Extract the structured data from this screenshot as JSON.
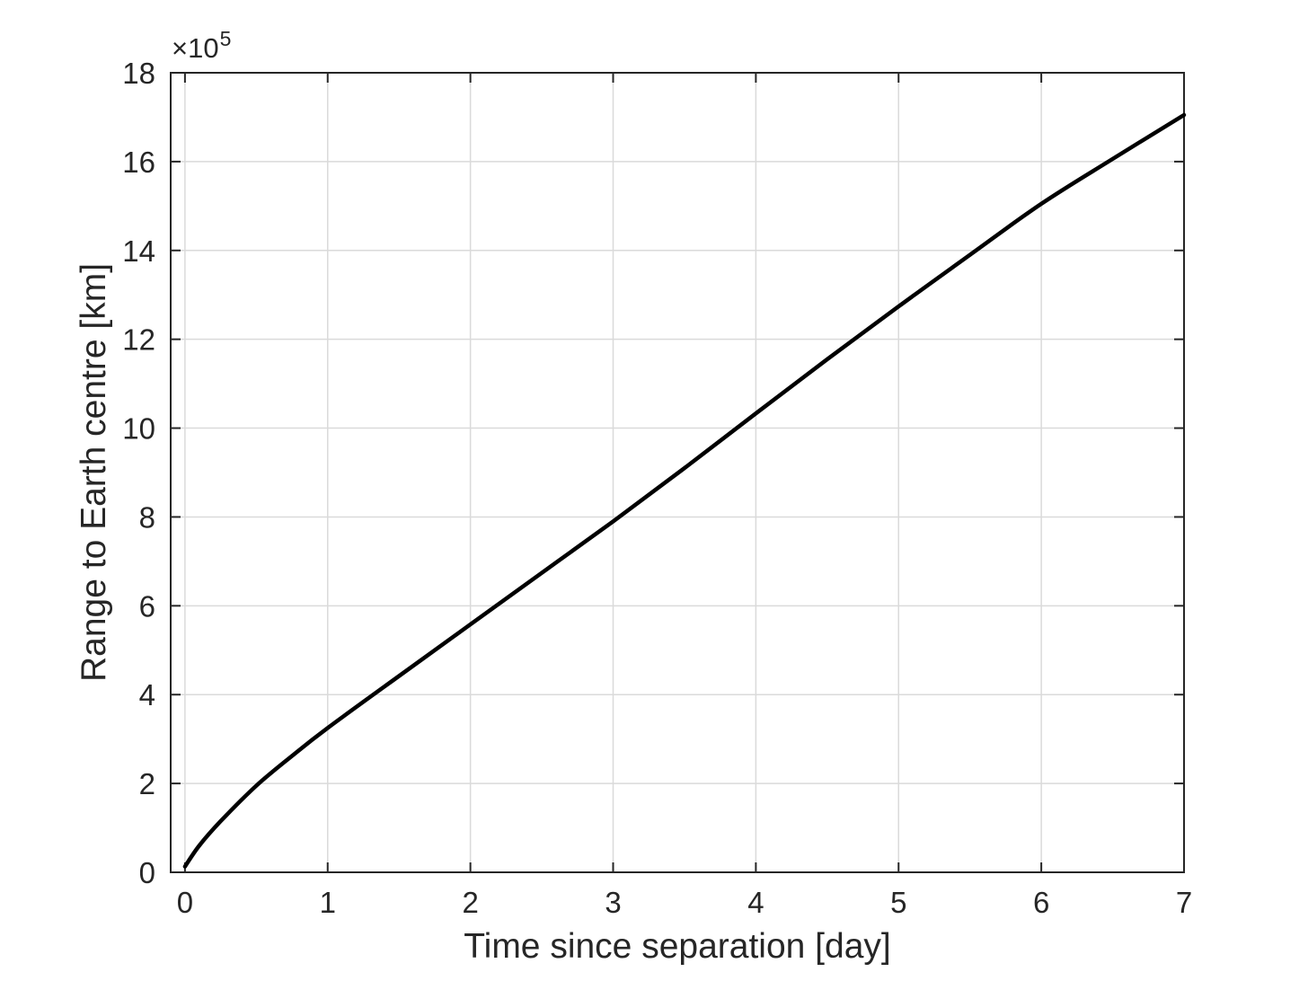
{
  "chart_data": {
    "type": "line",
    "title": "",
    "xlabel": "Time since separation [day]",
    "ylabel": "Range to Earth centre [km]",
    "y_multiplier_prefix": "×10",
    "y_multiplier_exponent": "5",
    "y_unit": "1e5 km",
    "xlim": [
      -0.1,
      7
    ],
    "ylim": [
      0,
      18
    ],
    "xticks": [
      0,
      1,
      2,
      3,
      4,
      5,
      6,
      7
    ],
    "yticks": [
      0,
      2,
      4,
      6,
      8,
      10,
      12,
      14,
      16,
      18
    ],
    "grid": true,
    "legend": null,
    "series": [
      {
        "x": [
          0,
          0.1,
          0.25,
          0.5,
          0.75,
          1,
          1.5,
          2,
          2.5,
          3,
          3.5,
          4,
          4.5,
          5,
          5.5,
          6,
          6.5,
          7
        ],
        "y": [
          0.13,
          0.6,
          1.15,
          1.95,
          2.62,
          3.25,
          4.42,
          5.58,
          6.74,
          7.9,
          9.1,
          10.33,
          11.55,
          12.74,
          13.9,
          15.05,
          16.06,
          17.05
        ],
        "color": "#000000",
        "line_width": 4.5
      }
    ],
    "colors": {
      "axis": "#262626",
      "grid": "#dadada",
      "tick_label": "#262626",
      "background": "#ffffff"
    }
  }
}
